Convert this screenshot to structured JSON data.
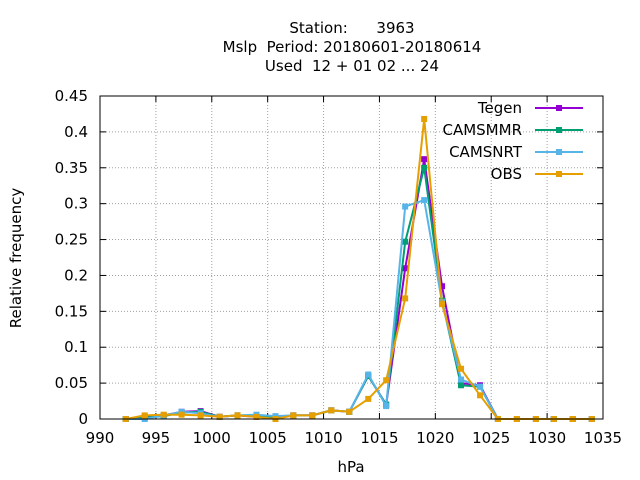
{
  "chart_data": {
    "type": "line",
    "title_lines": [
      "Station:      3963",
      "Mslp  Period: 20180601-20180614",
      "Used  12 + 01 02 ... 24"
    ],
    "xlabel": "hPa",
    "ylabel": "Relative frequency",
    "xlim": [
      990,
      1035
    ],
    "ylim": [
      0,
      0.45
    ],
    "xticks": [
      990,
      995,
      1000,
      1005,
      1010,
      1015,
      1020,
      1025,
      1030,
      1035
    ],
    "yticks": [
      0,
      0.05,
      0.1,
      0.15,
      0.2,
      0.25,
      0.3,
      0.35,
      0.4,
      0.45
    ],
    "ytick_labels": [
      "0",
      "0.05",
      "0.1",
      "0.15",
      "0.2",
      "0.25",
      "0.3",
      "0.35",
      "0.4",
      "0.45"
    ],
    "grid": true,
    "legend_position": "top-right",
    "x": [
      992.3,
      994.0,
      995.7,
      997.3,
      999.0,
      1000.7,
      1002.3,
      1004.0,
      1005.7,
      1007.3,
      1009.0,
      1010.7,
      1012.3,
      1014.0,
      1015.6,
      1017.3,
      1019.0,
      1020.6,
      1022.3,
      1024.0,
      1025.6,
      1027.3,
      1029.0,
      1030.6,
      1032.3,
      1034.0
    ],
    "series": [
      {
        "name": "Tegen",
        "color": "#9400d3",
        "values": [
          0.0,
          0.003,
          0.005,
          0.01,
          0.011,
          0.003,
          0.005,
          0.003,
          0.002,
          0.005,
          0.005,
          0.012,
          0.01,
          0.06,
          0.02,
          0.21,
          0.362,
          0.185,
          0.05,
          0.047,
          0.0,
          0.0,
          0.0,
          0.0,
          0.0,
          0.0
        ]
      },
      {
        "name": "CAMSMMR",
        "color": "#009e73",
        "values": [
          0.0,
          0.002,
          0.004,
          0.009,
          0.01,
          0.003,
          0.005,
          0.004,
          0.003,
          0.005,
          0.005,
          0.012,
          0.01,
          0.06,
          0.02,
          0.247,
          0.35,
          0.165,
          0.047,
          0.045,
          0.0,
          0.0,
          0.0,
          0.0,
          0.0,
          0.0
        ]
      },
      {
        "name": "CAMSNRT",
        "color": "#56b4e9",
        "values": [
          0.0,
          0.0,
          0.005,
          0.01,
          0.008,
          0.003,
          0.005,
          0.006,
          0.004,
          0.005,
          0.005,
          0.012,
          0.01,
          0.062,
          0.018,
          0.296,
          0.305,
          0.163,
          0.055,
          0.045,
          0.0,
          0.0,
          0.0,
          0.0,
          0.0,
          0.0
        ]
      },
      {
        "name": "OBS",
        "color": "#e69f00",
        "values": [
          0.0,
          0.005,
          0.006,
          0.006,
          0.005,
          0.003,
          0.005,
          0.003,
          0.0,
          0.005,
          0.005,
          0.012,
          0.01,
          0.028,
          0.054,
          0.168,
          0.418,
          0.16,
          0.07,
          0.033,
          0.0,
          0.0,
          0.0,
          0.0,
          0.0,
          0.0
        ]
      }
    ]
  }
}
